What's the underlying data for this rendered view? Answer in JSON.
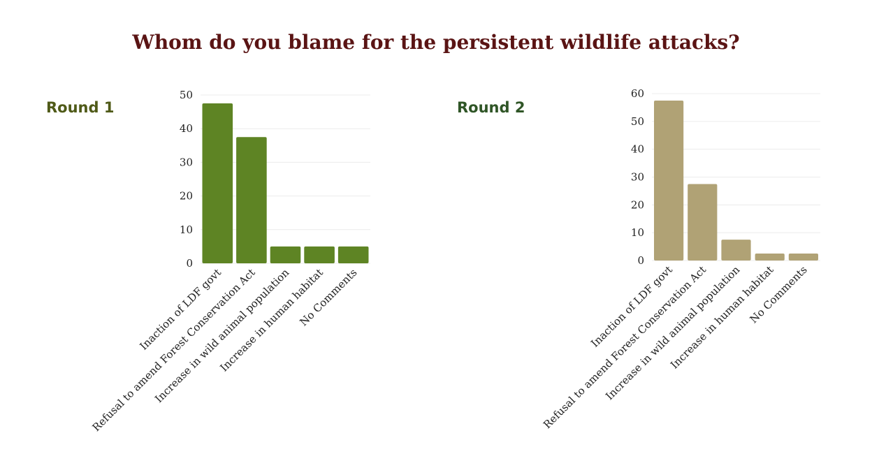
{
  "title": "Whom do you blame for the persistent wildlife attacks?",
  "chart_data": [
    {
      "type": "bar",
      "label": "Round 1",
      "color": "#5e8424",
      "categories": [
        "Inaction of LDF govt",
        "Refusal to amend Forest Conservation Act",
        "Increase in wild animal population",
        "Increase in human habitat",
        "No Comments"
      ],
      "values": [
        47.5,
        37.5,
        5,
        5,
        5
      ],
      "ylim": [
        0,
        50
      ],
      "yticks": [
        0,
        10,
        20,
        30,
        40,
        50
      ],
      "grid": true
    },
    {
      "type": "bar",
      "label": "Round 2",
      "color": "#b0a275",
      "categories": [
        "Inaction of LDF govt",
        "Refusal to amend Forest Conservation Act",
        "Increase in wild animal population",
        "Increase in human habitat",
        "No Comments"
      ],
      "values": [
        57.5,
        27.5,
        7.5,
        2.5,
        2.5
      ],
      "ylim": [
        0,
        60
      ],
      "yticks": [
        0,
        10,
        20,
        30,
        40,
        50,
        60
      ],
      "grid": true
    }
  ]
}
